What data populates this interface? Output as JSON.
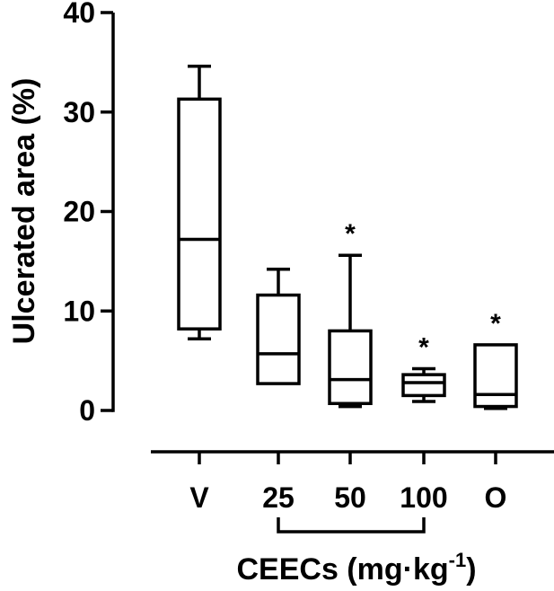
{
  "chart_data": {
    "type": "box",
    "ylabel": "Ulcerated area (%)",
    "xlabel_main": "CEECs (mg·kg",
    "xlabel_sup": "-1",
    "xlabel_close": ")",
    "ylim": [
      0,
      40
    ],
    "yticks": [
      "0",
      "10",
      "20",
      "30",
      "40"
    ],
    "grid": false,
    "categories": [
      "V",
      "25",
      "50",
      "100",
      "O"
    ],
    "boxes": [
      {
        "category": "V",
        "min": 7.2,
        "q1": 8.2,
        "median": 17.2,
        "q3": 31.3,
        "max": 34.6,
        "significance": ""
      },
      {
        "category": "25",
        "min": 2.7,
        "q1": 2.7,
        "median": 5.7,
        "q3": 11.6,
        "max": 14.2,
        "significance": ""
      },
      {
        "category": "50",
        "min": 0.4,
        "q1": 0.7,
        "median": 3.1,
        "q3": 8.0,
        "max": 15.6,
        "significance": "*"
      },
      {
        "category": "100",
        "min": 0.9,
        "q1": 1.5,
        "median": 2.8,
        "q3": 3.6,
        "max": 4.2,
        "significance": "*"
      },
      {
        "category": "O",
        "min": 0.2,
        "q1": 0.4,
        "median": 1.6,
        "q3": 6.6,
        "max": 6.6,
        "significance": "*"
      }
    ],
    "bracket_categories": [
      "25",
      "100"
    ]
  }
}
